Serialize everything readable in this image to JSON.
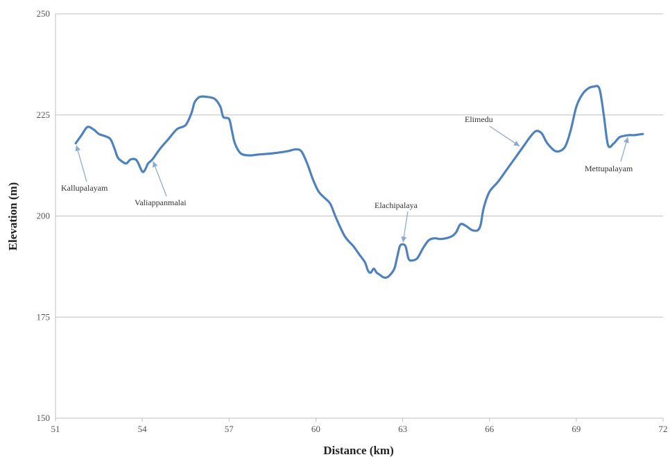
{
  "chart_data": {
    "type": "line",
    "title": "",
    "xlabel": "Distance (km)",
    "ylabel": "Elevation (m)",
    "xlim": [
      51,
      72
    ],
    "ylim": [
      150,
      250
    ],
    "x_ticks": [
      51,
      54,
      57,
      60,
      63,
      66,
      69,
      72
    ],
    "y_ticks": [
      150,
      175,
      200,
      225,
      250
    ],
    "grid": "horizontal",
    "legend": "none",
    "series_color": "#4f81bd",
    "series": [
      {
        "x": [
          51.7,
          51.9,
          52.1,
          52.3,
          52.5,
          52.7,
          52.9,
          53.05,
          53.15,
          53.3,
          53.45,
          53.6,
          53.8,
          54.0,
          54.1,
          54.2,
          54.35,
          54.6,
          54.9,
          55.2,
          55.5,
          55.7,
          55.8,
          55.9,
          56.0,
          56.2,
          56.5,
          56.7,
          56.8,
          57.0,
          57.1,
          57.2,
          57.4,
          57.7,
          58.0,
          58.5,
          59.0,
          59.3,
          59.5,
          59.7,
          59.9,
          60.1,
          60.3,
          60.5,
          60.7,
          61.0,
          61.3,
          61.5,
          61.7,
          61.8,
          61.9,
          62.0,
          62.1,
          62.2,
          62.35,
          62.5,
          62.7,
          62.8,
          62.9,
          63.0,
          63.1,
          63.2,
          63.3,
          63.5,
          63.7,
          63.9,
          64.1,
          64.3,
          64.5,
          64.7,
          64.85,
          65.0,
          65.2,
          65.4,
          65.6,
          65.7,
          65.8,
          66.0,
          66.3,
          66.6,
          66.9,
          67.2,
          67.4,
          67.6,
          67.8,
          68.0,
          68.3,
          68.6,
          68.8,
          69.0,
          69.2,
          69.4,
          69.6,
          69.8,
          69.95,
          70.1,
          70.3,
          70.5,
          70.8,
          71.0,
          71.3
        ],
        "y": [
          218,
          220,
          222,
          221.5,
          220.3,
          219.8,
          219.0,
          216.5,
          214.5,
          213.5,
          213.0,
          214.0,
          213.8,
          211.0,
          211.5,
          213.0,
          214.0,
          216.5,
          219.0,
          221.5,
          222.5,
          225.5,
          228.0,
          229.0,
          229.5,
          229.5,
          229.0,
          227.0,
          224.5,
          224.0,
          221.0,
          218.0,
          215.5,
          215.0,
          215.2,
          215.5,
          216.0,
          216.5,
          216.0,
          213.0,
          209.0,
          206.0,
          204.5,
          203.0,
          199.5,
          195.0,
          192.5,
          190.5,
          188.5,
          186.5,
          186.0,
          187.0,
          186.0,
          185.5,
          184.8,
          185.0,
          186.8,
          189.5,
          192.5,
          193.0,
          192.5,
          189.5,
          189.0,
          189.5,
          192.0,
          194.0,
          194.5,
          194.3,
          194.5,
          195.0,
          196.0,
          198.0,
          197.5,
          196.5,
          196.5,
          198.0,
          202.0,
          206.0,
          208.5,
          211.5,
          214.5,
          217.5,
          219.5,
          221.0,
          220.5,
          218.0,
          216.0,
          217.0,
          221.0,
          227.0,
          230.0,
          231.5,
          232.0,
          231.5,
          225.0,
          217.5,
          218.0,
          219.5,
          220.0,
          220.0,
          220.3
        ]
      }
    ],
    "annotations": [
      {
        "label": "Kallupalayam",
        "x": 51.7,
        "y": 218
      },
      {
        "label": "Valiappanmalai",
        "x": 54.35,
        "y": 214
      },
      {
        "label": "Elachipalaya",
        "x": 63.0,
        "y": 193
      },
      {
        "label": "Elimedu",
        "x": 67.1,
        "y": 217
      },
      {
        "label": "Mettupalayam",
        "x": 70.8,
        "y": 220
      }
    ]
  }
}
